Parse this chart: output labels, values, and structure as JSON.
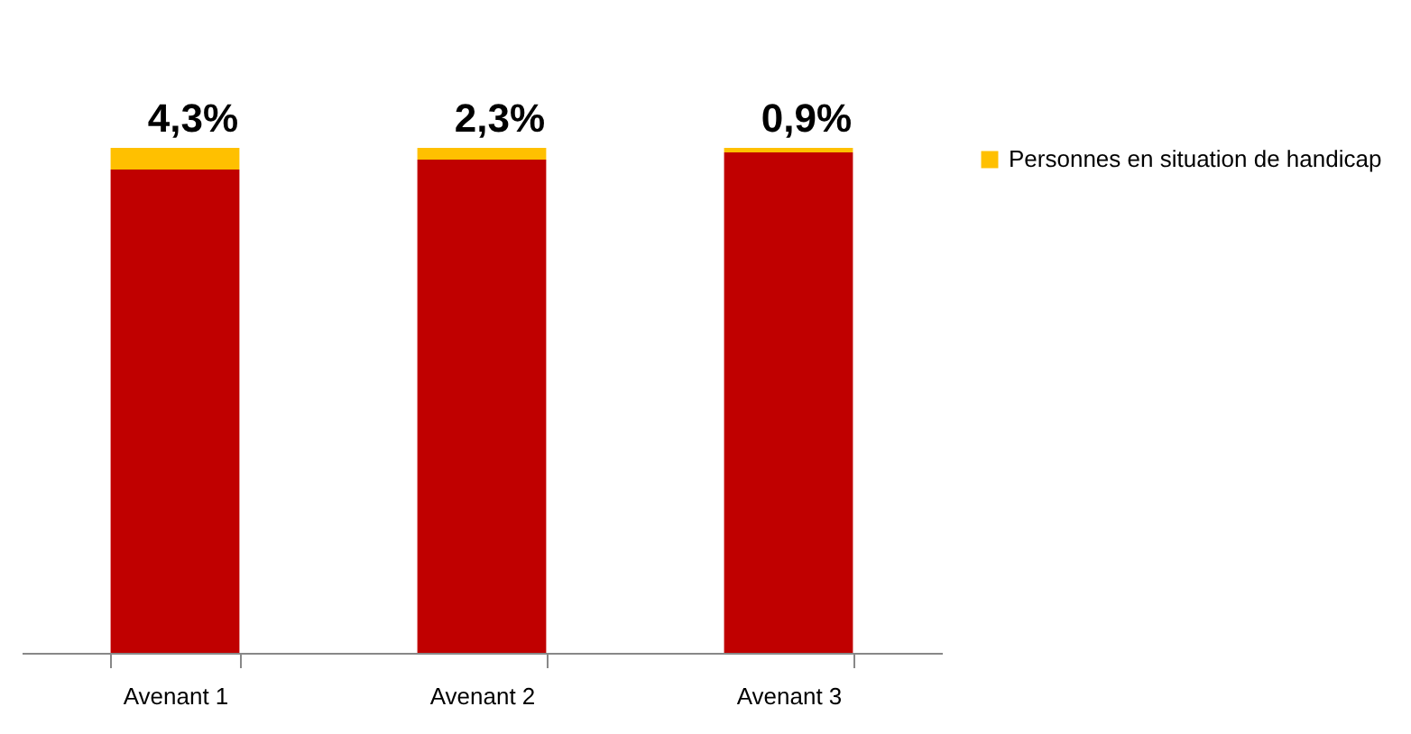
{
  "chart_data": {
    "type": "bar",
    "stacked": true,
    "categories": [
      "Avenant 1",
      "Avenant 2",
      "Avenant 3"
    ],
    "series": [
      {
        "color": "#c00000",
        "values": [
          95.7,
          97.7,
          99.1
        ]
      },
      {
        "name": "Personnes en situation de handicap",
        "color": "#ffc000",
        "values": [
          4.3,
          2.3,
          0.9
        ],
        "value_labels": [
          "4,3%",
          "2,3%",
          "0,9%"
        ]
      }
    ],
    "legend": "right",
    "grid": false
  }
}
